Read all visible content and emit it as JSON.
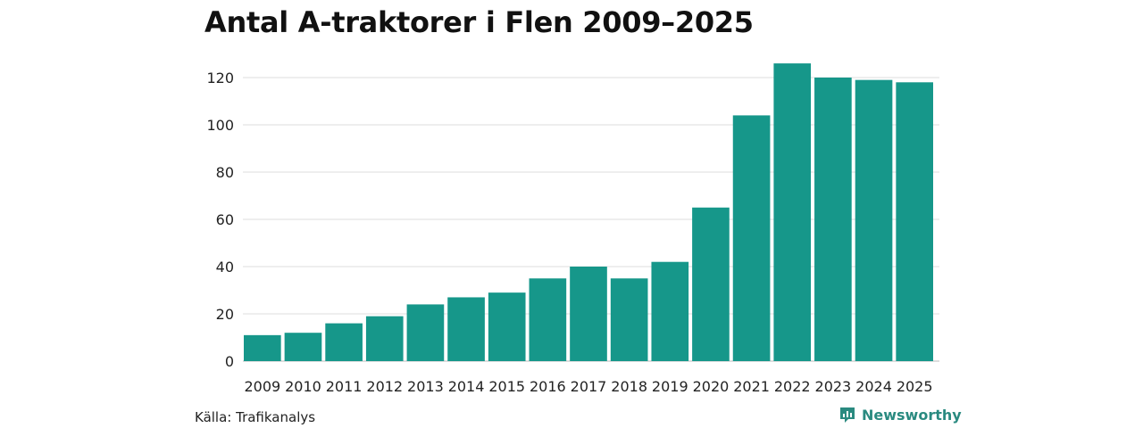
{
  "chart_data": {
    "type": "bar",
    "title": "Antal A-traktorer i Flen 2009–2025",
    "categories": [
      "2009",
      "2010",
      "2011",
      "2012",
      "2013",
      "2014",
      "2015",
      "2016",
      "2017",
      "2018",
      "2019",
      "2020",
      "2021",
      "2022",
      "2023",
      "2024",
      "2025"
    ],
    "values": [
      11,
      12,
      16,
      19,
      24,
      27,
      29,
      35,
      40,
      35,
      42,
      65,
      104,
      126,
      120,
      119,
      118
    ],
    "yticks": [
      0,
      20,
      40,
      60,
      80,
      100,
      120
    ],
    "ylim": [
      0,
      130
    ],
    "xlabel": "",
    "ylabel": "",
    "grid": true,
    "bar_color": "#16978a"
  },
  "source": "Källa: Trafikanalys",
  "brand": {
    "name": "Newsworthy",
    "icon": "newsworthy-logo-icon",
    "color": "#2a8a80"
  }
}
